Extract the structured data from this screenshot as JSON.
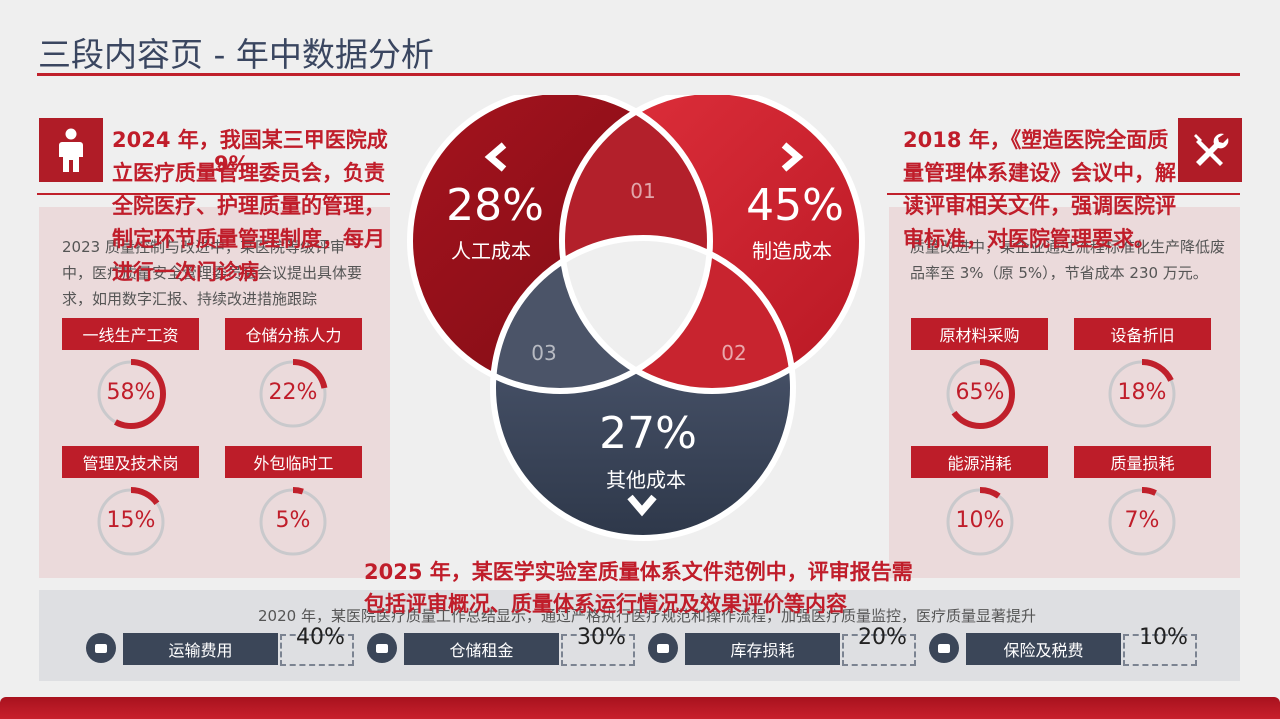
{
  "title": "三段内容页 - 年中数据分析",
  "left": {
    "icon": "person-icon",
    "note": "2024 年，我国某三甲医院成立医疗质量管理委员会，负责全院医疗、护理质量的管理，制定环节质量管理制度，每月进行一次门诊病",
    "note_overlay": "9%",
    "desc": "2023 质量控制与改进中，某医院等级评审中，医疗质量安全管理委员会会议提出具体要求，如用数字汇报、持续改进措施跟踪",
    "tags": [
      {
        "label": "一线生产工资",
        "pct": "58%",
        "value": 58
      },
      {
        "label": "仓储分拣人力",
        "pct": "22%",
        "value": 22
      },
      {
        "label": "管理及技术岗",
        "pct": "15%",
        "value": 15
      },
      {
        "label": "外包临时工",
        "pct": "5%",
        "value": 5
      }
    ]
  },
  "right": {
    "icon": "tools-icon",
    "note": "2018 年，《塑造医院全面质量管理体系建设》会议中，解读评审相关文件，强调医院评审标准，对医院管理要求。",
    "desc": "质量改进中，某企业通过流程标准化生产降低废品率至 3%（原 5%），节省成本 230 万元。",
    "tags": [
      {
        "label": "原材料采购",
        "pct": "65%",
        "value": 65
      },
      {
        "label": "设备折旧",
        "pct": "18%",
        "value": 18
      },
      {
        "label": "能源消耗",
        "pct": "10%",
        "value": 10
      },
      {
        "label": "质量损耗",
        "pct": "7%",
        "value": 7
      }
    ]
  },
  "venn": {
    "a": {
      "pct": "28%",
      "label": "人工成本",
      "num": "01",
      "arrow": "chevron-left-icon"
    },
    "b": {
      "pct": "45%",
      "label": "制造成本",
      "num": "02",
      "arrow": "chevron-right-icon"
    },
    "c": {
      "pct": "27%",
      "label": "其他成本",
      "num": "03",
      "arrow": "chevron-down-icon"
    }
  },
  "bottom": {
    "note": "2025 年，某医学实验室质量体系文件范例中，评审报告需包括评审概况、质量体系运行情况及效果评价等内容",
    "desc": "2020 年，某医院医疗质量工作总结显示，通过严格执行医疗规范和操作流程，加强医疗质量监控，医疗质量显著提升",
    "items": [
      {
        "label": "运输费用",
        "pct": "40%"
      },
      {
        "label": "仓储租金",
        "pct": "30%"
      },
      {
        "label": "库存损耗",
        "pct": "20%"
      },
      {
        "label": "保险及税费",
        "pct": "10%"
      }
    ]
  },
  "colors": {
    "accent": "#c0202b",
    "dark": "#3b4658",
    "panel": "#ead6d7"
  }
}
